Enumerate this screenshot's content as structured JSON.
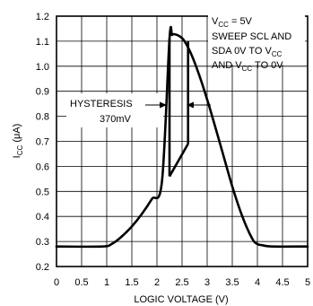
{
  "chart_data": {
    "type": "line",
    "xlabel": "LOGIC VOLTAGE (V)",
    "ylabel_main": "I",
    "ylabel_sub": "CC",
    "ylabel_unit": " (μA)",
    "xlim": [
      0,
      5
    ],
    "ylim": [
      0.2,
      1.2
    ],
    "x_ticks": [
      "0",
      "0.5",
      "1",
      "1.5",
      "2",
      "2.5",
      "3",
      "3.5",
      "4",
      "4.5",
      "5"
    ],
    "y_ticks": [
      "0.2",
      "0.3",
      "0.4",
      "0.5",
      "0.6",
      "0.7",
      "0.8",
      "0.9",
      "1.0",
      "1.1",
      "1.2"
    ],
    "grid": true,
    "curve": {
      "x": [
        0,
        0.9,
        1.1,
        1.3,
        1.5,
        1.7,
        1.9,
        2.1,
        2.25,
        2.3,
        2.35,
        2.45,
        2.55,
        2.7,
        2.9,
        3.1,
        3.3,
        3.5,
        3.7,
        3.9,
        4.0,
        4.1,
        4.3,
        5.0
      ],
      "y": [
        0.28,
        0.28,
        0.29,
        0.32,
        0.36,
        0.41,
        0.47,
        0.54,
        1.11,
        1.125,
        1.128,
        1.12,
        1.1,
        1.04,
        0.93,
        0.8,
        0.66,
        0.52,
        0.4,
        0.31,
        0.29,
        0.285,
        0.28,
        0.28
      ]
    },
    "hysteresis_loop": {
      "up_path": {
        "x": [
          2.25,
          2.25
        ],
        "y": [
          0.56,
          1.11
        ]
      },
      "down_path": {
        "x": [
          2.62,
          2.62
        ],
        "y": [
          1.1,
          0.69
        ]
      },
      "lower_edge": {
        "x": [
          2.25,
          2.62
        ],
        "y": [
          0.56,
          0.69
        ]
      }
    },
    "annotations": {
      "vcc_main": "V",
      "vcc_sub": "CC",
      "vcc_rest": " = 5V",
      "sweep_line1": "SWEEP SCL AND",
      "sweep_line2_main": "SDA 0V TO V",
      "sweep_line2_sub": "CC",
      "sweep_line3_a": "AND V",
      "sweep_line3_sub": "CC",
      "sweep_line3_b": " TO 0V",
      "hysteresis_label": "HYSTERESIS",
      "hysteresis_value": "370mV"
    }
  }
}
